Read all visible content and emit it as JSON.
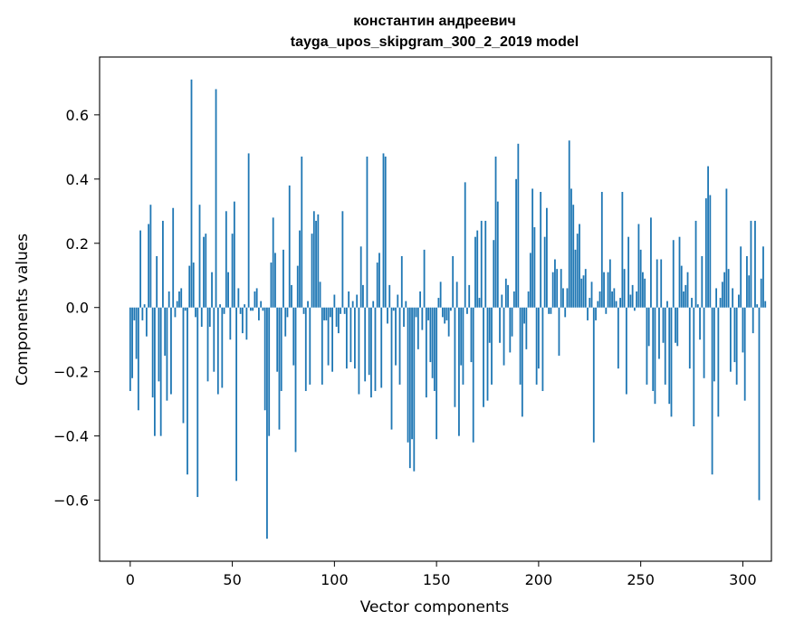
{
  "chart_data": {
    "type": "bar",
    "title_line1": "константин андреевич",
    "title_line2": "tayga_upos_skipgram_300_2_2019 model",
    "xlabel": "Vector components",
    "ylabel": "Components values",
    "xlim": [
      -15,
      314
    ],
    "ylim": [
      -0.79,
      0.78
    ],
    "x_ticks": [
      0,
      50,
      100,
      150,
      200,
      250,
      300
    ],
    "x_tick_labels": [
      "0",
      "50",
      "100",
      "150",
      "200",
      "250",
      "300"
    ],
    "y_ticks": [
      -0.6,
      -0.4,
      -0.2,
      0.0,
      0.2,
      0.4,
      0.6
    ],
    "y_tick_labels": [
      "−0.6",
      "−0.4",
      "−0.2",
      "0.0",
      "0.2",
      "0.4",
      "0.6"
    ],
    "bar_color": "#1f77b4",
    "grid": false,
    "values": [
      -0.26,
      -0.22,
      -0.04,
      -0.16,
      -0.32,
      0.24,
      -0.04,
      0.01,
      -0.09,
      0.26,
      0.32,
      -0.28,
      -0.4,
      0.16,
      -0.23,
      -0.4,
      0.27,
      -0.15,
      -0.29,
      0.05,
      -0.27,
      0.31,
      -0.03,
      0.02,
      0.05,
      0.06,
      -0.36,
      -0.01,
      -0.52,
      0.13,
      0.71,
      0.14,
      -0.03,
      -0.59,
      0.32,
      -0.06,
      0.22,
      0.23,
      -0.23,
      -0.06,
      0.11,
      -0.2,
      0.68,
      -0.27,
      0.01,
      -0.25,
      -0.02,
      0.3,
      0.11,
      -0.1,
      0.23,
      0.33,
      -0.54,
      0.06,
      -0.02,
      -0.08,
      0.01,
      -0.1,
      0.48,
      -0.01,
      -0.01,
      0.05,
      0.06,
      -0.04,
      0.02,
      -0.01,
      -0.32,
      -0.72,
      -0.4,
      0.14,
      0.28,
      0.17,
      -0.2,
      -0.38,
      -0.26,
      0.18,
      -0.09,
      -0.03,
      0.38,
      0.07,
      -0.18,
      -0.45,
      0.13,
      0.24,
      0.47,
      -0.02,
      -0.26,
      0.02,
      -0.24,
      0.23,
      0.3,
      0.27,
      0.29,
      0.08,
      -0.24,
      -0.04,
      -0.04,
      -0.18,
      -0.03,
      -0.2,
      0.04,
      -0.06,
      -0.08,
      -0.02,
      0.3,
      -0.02,
      -0.19,
      0.05,
      -0.17,
      0.02,
      -0.19,
      0.04,
      -0.27,
      0.19,
      0.07,
      -0.23,
      0.47,
      -0.21,
      -0.28,
      0.02,
      -0.26,
      0.14,
      0.17,
      -0.25,
      0.48,
      0.47,
      -0.05,
      0.07,
      -0.38,
      -0.01,
      -0.18,
      0.04,
      -0.24,
      0.16,
      -0.06,
      0.02,
      -0.42,
      -0.5,
      -0.41,
      -0.51,
      -0.03,
      -0.13,
      0.05,
      -0.07,
      0.18,
      -0.28,
      -0.04,
      -0.17,
      -0.22,
      -0.26,
      -0.41,
      0.03,
      0.08,
      -0.03,
      -0.05,
      -0.04,
      -0.09,
      -0.01,
      0.16,
      -0.31,
      0.08,
      -0.4,
      -0.18,
      -0.24,
      0.39,
      -0.02,
      0.07,
      -0.17,
      -0.42,
      0.22,
      0.24,
      0.03,
      0.27,
      -0.31,
      0.27,
      -0.29,
      -0.11,
      -0.24,
      0.21,
      0.47,
      0.33,
      -0.11,
      0.04,
      -0.18,
      0.09,
      0.07,
      -0.14,
      -0.09,
      0.05,
      0.4,
      0.51,
      -0.24,
      -0.34,
      -0.05,
      -0.13,
      0.05,
      0.17,
      0.37,
      0.25,
      -0.24,
      -0.19,
      0.36,
      -0.26,
      0.22,
      0.31,
      -0.02,
      -0.02,
      0.11,
      0.15,
      0.12,
      -0.15,
      0.12,
      0.06,
      -0.03,
      0.06,
      0.52,
      0.37,
      0.32,
      0.18,
      0.23,
      0.26,
      0.09,
      0.1,
      0.12,
      -0.04,
      0.03,
      0.08,
      -0.42,
      -0.04,
      0.02,
      0.05,
      0.36,
      0.11,
      -0.02,
      0.11,
      0.15,
      0.05,
      0.06,
      0.02,
      -0.19,
      0.03,
      0.36,
      0.12,
      -0.27,
      0.22,
      0.04,
      0.07,
      -0.01,
      0.05,
      0.26,
      0.18,
      0.11,
      0.09,
      -0.24,
      -0.12,
      0.28,
      -0.26,
      -0.3,
      0.15,
      -0.16,
      0.15,
      -0.11,
      -0.24,
      0.02,
      -0.3,
      -0.34,
      0.21,
      -0.11,
      -0.12,
      0.22,
      0.13,
      0.05,
      0.07,
      0.11,
      -0.19,
      0.03,
      -0.37,
      0.27,
      0.01,
      -0.1,
      0.16,
      -0.22,
      0.34,
      0.44,
      0.35,
      -0.52,
      -0.23,
      0.06,
      -0.34,
      0.03,
      0.08,
      0.11,
      0.37,
      0.12,
      -0.2,
      0.06,
      -0.17,
      -0.24,
      0.04,
      0.19,
      -0.14,
      -0.29,
      0.16,
      0.1,
      0.27,
      -0.08,
      0.27,
      0.01,
      -0.6,
      0.09,
      0.19,
      0.02
    ]
  }
}
